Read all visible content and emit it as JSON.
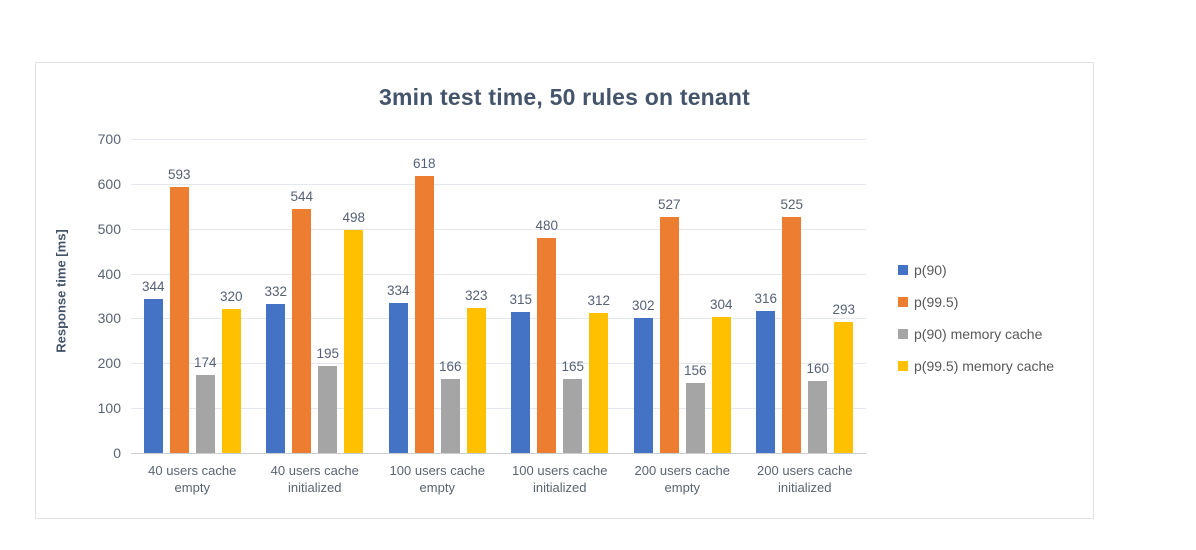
{
  "chart_data": {
    "type": "bar",
    "title": "3min test time, 50 rules on tenant",
    "xlabel": "",
    "ylabel": "Response time [ms]",
    "categories": [
      "40 users cache empty",
      "40 users cache initialized",
      "100 users cache empty",
      "100 users cache initialized",
      "200 users cache empty",
      "200 users cache initialized"
    ],
    "series": [
      {
        "name": "p(90)",
        "color": "#4472C4",
        "values": [
          344,
          332,
          334,
          315,
          302,
          316
        ]
      },
      {
        "name": "p(99.5)",
        "color": "#ED7D31",
        "values": [
          593,
          544,
          618,
          480,
          527,
          525
        ]
      },
      {
        "name": "p(90) memory cache",
        "color": "#A5A5A5",
        "values": [
          174,
          195,
          166,
          165,
          156,
          160
        ]
      },
      {
        "name": "p(99.5) memory cache",
        "color": "#FFC000",
        "values": [
          320,
          498,
          323,
          312,
          304,
          293
        ]
      }
    ],
    "ylim": [
      0,
      700
    ],
    "y_ticks": [
      0,
      100,
      200,
      300,
      400,
      500,
      600,
      700
    ],
    "grid": true,
    "data_labels": true,
    "legend_position": "right",
    "colors": {
      "title_text": "#44546A",
      "axis_title_text": "#44546A",
      "tick_label_text": "#5A6472",
      "data_label_text": "#566176",
      "legend_text": "#595959",
      "gridline": "#E3E7EE",
      "axis_line": "#C9CDD2",
      "frame_border": "#E0E3E6",
      "background": "#FFFFFF"
    }
  }
}
